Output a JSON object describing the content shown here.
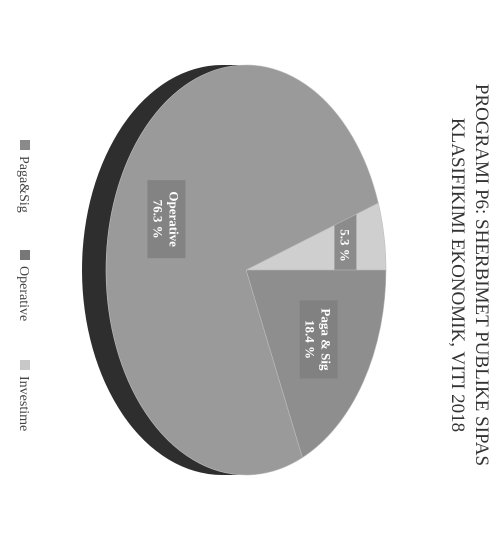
{
  "chart_data": {
    "type": "pie",
    "title_lines": [
      "PROGRAMI P6: SHERBIMET PUBLIKE SIPAS",
      "KLASIFIKIMI EKONOMIK, VITI 2018"
    ],
    "slices": [
      {
        "name": "Paga&Sig",
        "label": "Paga & Sig",
        "pct_label": "18.4 %",
        "value": 18.4,
        "color": "#8e8e8e"
      },
      {
        "name": "Operative",
        "label": "Operative",
        "pct_label": "76.3 %",
        "value": 76.3,
        "color": "#9a9a9a"
      },
      {
        "name": "Investime",
        "label": "",
        "pct_label": "5.3 %",
        "value": 5.3,
        "color": "#cfcfcf"
      }
    ],
    "legend": [
      "Paga&Sig",
      "Operative",
      "Investime"
    ],
    "legend_colors": [
      "#8a8a8a",
      "#777777",
      "#c8c8c8"
    ],
    "side_color": "#2e2e2e",
    "orientation": "rotated-90-clockwise"
  }
}
